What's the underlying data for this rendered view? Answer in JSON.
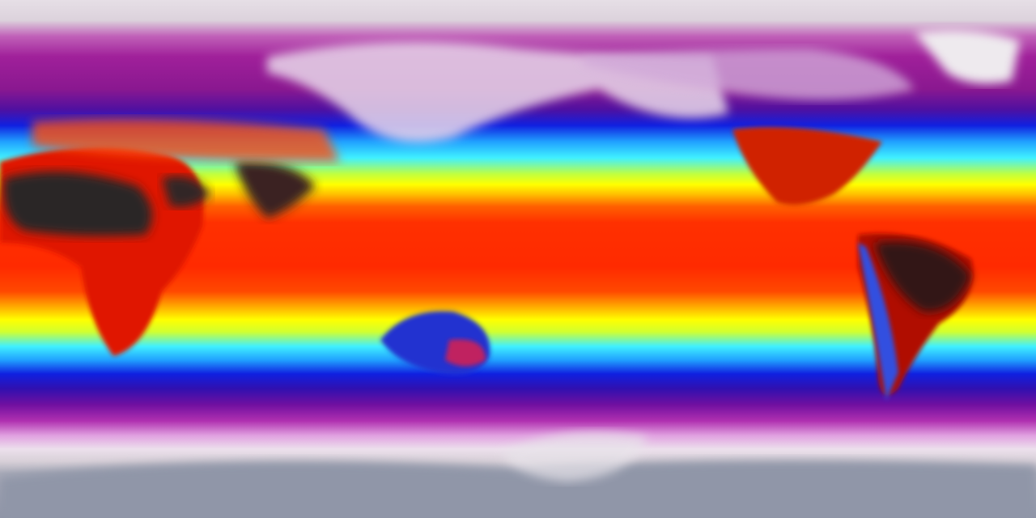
{
  "map": {
    "colormap": [
      "#e6dfe6",
      "#a0209a",
      "#1020e0",
      "#40f0ff",
      "#ffff00",
      "#ff6000",
      "#ff2a00",
      "#1a1a1a"
    ],
    "land_hot_color": "#2a2a2a",
    "antarctica_color": "#8e94a6"
  }
}
